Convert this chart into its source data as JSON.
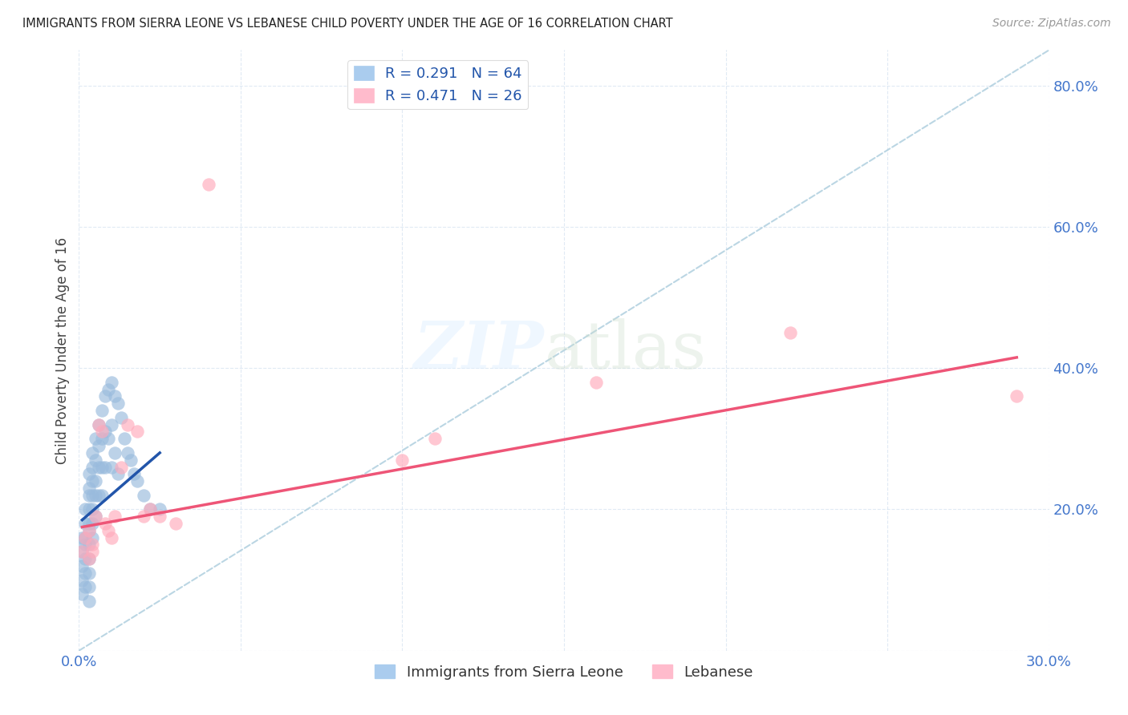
{
  "title": "IMMIGRANTS FROM SIERRA LEONE VS LEBANESE CHILD POVERTY UNDER THE AGE OF 16 CORRELATION CHART",
  "source": "Source: ZipAtlas.com",
  "ylabel": "Child Poverty Under the Age of 16",
  "xmin": 0.0,
  "xmax": 0.3,
  "ymin": 0.0,
  "ymax": 0.85,
  "legend1_label": "R = 0.291   N = 64",
  "legend2_label": "R = 0.471   N = 26",
  "legend_bottom_label1": "Immigrants from Sierra Leone",
  "legend_bottom_label2": "Lebanese",
  "color_blue": "#99BBDD",
  "color_pink": "#FFAABB",
  "color_blue_line": "#2255AA",
  "color_pink_line": "#EE5577",
  "color_dashed": "#AACCEE",
  "sierra_leone_x": [
    0.001,
    0.001,
    0.001,
    0.001,
    0.001,
    0.002,
    0.002,
    0.002,
    0.002,
    0.002,
    0.002,
    0.002,
    0.003,
    0.003,
    0.003,
    0.003,
    0.003,
    0.003,
    0.003,
    0.003,
    0.003,
    0.003,
    0.003,
    0.004,
    0.004,
    0.004,
    0.004,
    0.004,
    0.004,
    0.004,
    0.005,
    0.005,
    0.005,
    0.005,
    0.005,
    0.006,
    0.006,
    0.006,
    0.006,
    0.007,
    0.007,
    0.007,
    0.007,
    0.008,
    0.008,
    0.008,
    0.009,
    0.009,
    0.01,
    0.01,
    0.01,
    0.011,
    0.011,
    0.012,
    0.012,
    0.013,
    0.014,
    0.015,
    0.016,
    0.017,
    0.018,
    0.02,
    0.022,
    0.025
  ],
  "sierra_leone_y": [
    0.16,
    0.14,
    0.12,
    0.1,
    0.08,
    0.2,
    0.18,
    0.16,
    0.15,
    0.13,
    0.11,
    0.09,
    0.25,
    0.23,
    0.22,
    0.2,
    0.18,
    0.17,
    0.15,
    0.13,
    0.11,
    0.09,
    0.07,
    0.28,
    0.26,
    0.24,
    0.22,
    0.2,
    0.18,
    0.16,
    0.3,
    0.27,
    0.24,
    0.22,
    0.19,
    0.32,
    0.29,
    0.26,
    0.22,
    0.34,
    0.3,
    0.26,
    0.22,
    0.36,
    0.31,
    0.26,
    0.37,
    0.3,
    0.38,
    0.32,
    0.26,
    0.36,
    0.28,
    0.35,
    0.25,
    0.33,
    0.3,
    0.28,
    0.27,
    0.25,
    0.24,
    0.22,
    0.2,
    0.2
  ],
  "lebanese_x": [
    0.001,
    0.002,
    0.003,
    0.003,
    0.004,
    0.004,
    0.005,
    0.006,
    0.007,
    0.008,
    0.009,
    0.01,
    0.011,
    0.013,
    0.015,
    0.018,
    0.02,
    0.022,
    0.025,
    0.03,
    0.04,
    0.1,
    0.11,
    0.16,
    0.22,
    0.29
  ],
  "lebanese_y": [
    0.14,
    0.16,
    0.17,
    0.13,
    0.15,
    0.14,
    0.19,
    0.32,
    0.31,
    0.18,
    0.17,
    0.16,
    0.19,
    0.26,
    0.32,
    0.31,
    0.19,
    0.2,
    0.19,
    0.18,
    0.66,
    0.27,
    0.3,
    0.38,
    0.45,
    0.36
  ],
  "sl_line_x": [
    0.001,
    0.025
  ],
  "sl_line_y": [
    0.185,
    0.28
  ],
  "leb_line_x": [
    0.001,
    0.29
  ],
  "leb_line_y": [
    0.175,
    0.415
  ]
}
